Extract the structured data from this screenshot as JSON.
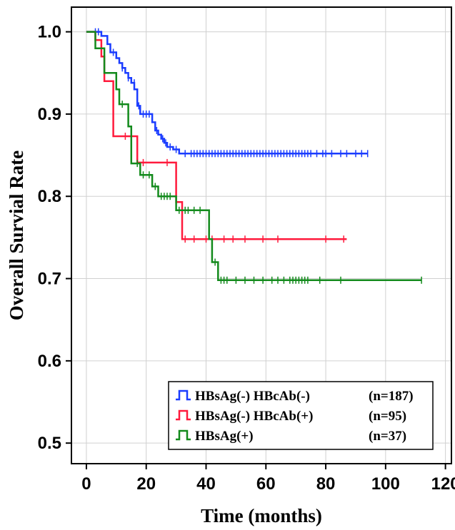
{
  "chart_data": {
    "type": "line",
    "subtype": "kaplan-meier",
    "title": "",
    "xlabel": "Time (months)",
    "ylabel": "Overall Survial Rate",
    "xlim": [
      -5,
      122
    ],
    "ylim": [
      0.475,
      1.03
    ],
    "xticks": [
      0,
      20,
      40,
      60,
      80,
      100,
      120
    ],
    "yticks": [
      0.5,
      0.6,
      0.7,
      0.8,
      0.9,
      1.0
    ],
    "xtick_labels": [
      "0",
      "20",
      "40",
      "60",
      "80",
      "100",
      "120"
    ],
    "ytick_labels": [
      "0.5",
      "0.6",
      "0.7",
      "0.8",
      "0.9",
      "1.0"
    ],
    "grid": true,
    "legend_position": "bottom-right",
    "series": [
      {
        "name": "HBsAg(-) HBcAb(-)",
        "n_label": "(n=187)",
        "color": "#1a3cff",
        "steps": [
          [
            0,
            1.0
          ],
          [
            5,
            1.0
          ],
          [
            5,
            0.995
          ],
          [
            7,
            0.995
          ],
          [
            7,
            0.985
          ],
          [
            8,
            0.985
          ],
          [
            8,
            0.975
          ],
          [
            10,
            0.975
          ],
          [
            10,
            0.968
          ],
          [
            11,
            0.968
          ],
          [
            11,
            0.962
          ],
          [
            12,
            0.962
          ],
          [
            12,
            0.956
          ],
          [
            13,
            0.956
          ],
          [
            13,
            0.95
          ],
          [
            14,
            0.95
          ],
          [
            14,
            0.944
          ],
          [
            15,
            0.944
          ],
          [
            15,
            0.938
          ],
          [
            16,
            0.938
          ],
          [
            16,
            0.93
          ],
          [
            17,
            0.93
          ],
          [
            17,
            0.91
          ],
          [
            18,
            0.91
          ],
          [
            18,
            0.9
          ],
          [
            22,
            0.9
          ],
          [
            22,
            0.89
          ],
          [
            23,
            0.89
          ],
          [
            23,
            0.88
          ],
          [
            24,
            0.88
          ],
          [
            24,
            0.875
          ],
          [
            25,
            0.875
          ],
          [
            25,
            0.87
          ],
          [
            26,
            0.87
          ],
          [
            26,
            0.865
          ],
          [
            27,
            0.865
          ],
          [
            27,
            0.86
          ],
          [
            29,
            0.86
          ],
          [
            29,
            0.857
          ],
          [
            31,
            0.857
          ],
          [
            31,
            0.852
          ],
          [
            94,
            0.852
          ]
        ],
        "censors": [
          [
            3,
            1.0
          ],
          [
            4,
            1.0
          ],
          [
            9,
            0.975
          ],
          [
            12,
            0.956
          ],
          [
            14,
            0.944
          ],
          [
            16,
            0.938
          ],
          [
            17.5,
            0.91
          ],
          [
            19,
            0.9
          ],
          [
            20,
            0.9
          ],
          [
            21,
            0.9
          ],
          [
            23.5,
            0.88
          ],
          [
            25.5,
            0.87
          ],
          [
            26.5,
            0.865
          ],
          [
            28,
            0.86
          ],
          [
            30,
            0.857
          ],
          [
            33,
            0.852
          ],
          [
            35,
            0.852
          ],
          [
            36,
            0.852
          ],
          [
            37,
            0.852
          ],
          [
            38,
            0.852
          ],
          [
            39,
            0.852
          ],
          [
            40,
            0.852
          ],
          [
            41,
            0.852
          ],
          [
            42,
            0.852
          ],
          [
            43,
            0.852
          ],
          [
            44,
            0.852
          ],
          [
            45,
            0.852
          ],
          [
            46,
            0.852
          ],
          [
            47,
            0.852
          ],
          [
            48,
            0.852
          ],
          [
            49,
            0.852
          ],
          [
            50,
            0.852
          ],
          [
            51,
            0.852
          ],
          [
            52,
            0.852
          ],
          [
            53,
            0.852
          ],
          [
            54,
            0.852
          ],
          [
            55,
            0.852
          ],
          [
            56,
            0.852
          ],
          [
            57,
            0.852
          ],
          [
            58,
            0.852
          ],
          [
            59,
            0.852
          ],
          [
            60,
            0.852
          ],
          [
            61,
            0.852
          ],
          [
            62,
            0.852
          ],
          [
            63,
            0.852
          ],
          [
            64,
            0.852
          ],
          [
            65,
            0.852
          ],
          [
            66,
            0.852
          ],
          [
            67,
            0.852
          ],
          [
            68,
            0.852
          ],
          [
            69,
            0.852
          ],
          [
            70,
            0.852
          ],
          [
            71,
            0.852
          ],
          [
            72,
            0.852
          ],
          [
            73,
            0.852
          ],
          [
            74,
            0.852
          ],
          [
            75,
            0.852
          ],
          [
            77,
            0.852
          ],
          [
            79,
            0.852
          ],
          [
            80,
            0.852
          ],
          [
            82,
            0.852
          ],
          [
            85,
            0.852
          ],
          [
            87,
            0.852
          ],
          [
            90,
            0.852
          ],
          [
            92,
            0.852
          ],
          [
            94,
            0.852
          ]
        ]
      },
      {
        "name": "HBsAg(-) HBcAb(+)",
        "n_label": "(n=95)",
        "color": "#ff1a3c",
        "steps": [
          [
            0,
            1.0
          ],
          [
            3,
            1.0
          ],
          [
            3,
            0.99
          ],
          [
            5,
            0.99
          ],
          [
            5,
            0.97
          ],
          [
            6,
            0.97
          ],
          [
            6,
            0.94
          ],
          [
            9,
            0.94
          ],
          [
            9,
            0.873
          ],
          [
            14,
            0.873
          ],
          [
            14,
            0.873
          ],
          [
            17,
            0.873
          ],
          [
            17,
            0.841
          ],
          [
            30,
            0.841
          ],
          [
            30,
            0.793
          ],
          [
            32,
            0.793
          ],
          [
            32,
            0.748
          ],
          [
            87,
            0.748
          ]
        ],
        "censors": [
          [
            6,
            0.97
          ],
          [
            13,
            0.873
          ],
          [
            15,
            0.873
          ],
          [
            19,
            0.841
          ],
          [
            27,
            0.841
          ],
          [
            33,
            0.748
          ],
          [
            36,
            0.748
          ],
          [
            40,
            0.748
          ],
          [
            42,
            0.748
          ],
          [
            46,
            0.748
          ],
          [
            49,
            0.748
          ],
          [
            53,
            0.748
          ],
          [
            59,
            0.748
          ],
          [
            64,
            0.748
          ],
          [
            80,
            0.748
          ],
          [
            86,
            0.748
          ]
        ]
      },
      {
        "name": "HBsAg(+)",
        "n_label": "(n=37)",
        "color": "#138a1c",
        "steps": [
          [
            0,
            1.0
          ],
          [
            3,
            1.0
          ],
          [
            3,
            0.98
          ],
          [
            6,
            0.98
          ],
          [
            6,
            0.95
          ],
          [
            10,
            0.95
          ],
          [
            10,
            0.93
          ],
          [
            11,
            0.93
          ],
          [
            11,
            0.912
          ],
          [
            14,
            0.912
          ],
          [
            14,
            0.885
          ],
          [
            15,
            0.885
          ],
          [
            15,
            0.84
          ],
          [
            18,
            0.84
          ],
          [
            18,
            0.826
          ],
          [
            22,
            0.826
          ],
          [
            22,
            0.812
          ],
          [
            24,
            0.812
          ],
          [
            24,
            0.8
          ],
          [
            30,
            0.8
          ],
          [
            30,
            0.783
          ],
          [
            41,
            0.783
          ],
          [
            41,
            0.748
          ],
          [
            42,
            0.748
          ],
          [
            42,
            0.72
          ],
          [
            44,
            0.72
          ],
          [
            44,
            0.698
          ],
          [
            112,
            0.698
          ]
        ],
        "censors": [
          [
            12,
            0.912
          ],
          [
            17,
            0.84
          ],
          [
            19,
            0.826
          ],
          [
            21,
            0.826
          ],
          [
            23,
            0.812
          ],
          [
            25,
            0.8
          ],
          [
            26,
            0.8
          ],
          [
            27,
            0.8
          ],
          [
            28,
            0.8
          ],
          [
            31,
            0.783
          ],
          [
            33,
            0.783
          ],
          [
            34,
            0.783
          ],
          [
            36,
            0.783
          ],
          [
            38,
            0.783
          ],
          [
            43,
            0.72
          ],
          [
            45,
            0.698
          ],
          [
            46,
            0.698
          ],
          [
            47,
            0.698
          ],
          [
            50,
            0.698
          ],
          [
            53,
            0.698
          ],
          [
            56,
            0.698
          ],
          [
            59,
            0.698
          ],
          [
            62,
            0.698
          ],
          [
            64,
            0.698
          ],
          [
            66,
            0.698
          ],
          [
            68,
            0.698
          ],
          [
            69,
            0.698
          ],
          [
            70,
            0.698
          ],
          [
            71,
            0.698
          ],
          [
            72,
            0.698
          ],
          [
            73,
            0.698
          ],
          [
            74,
            0.698
          ],
          [
            78,
            0.698
          ],
          [
            85,
            0.698
          ],
          [
            112,
            0.698
          ]
        ]
      }
    ]
  }
}
